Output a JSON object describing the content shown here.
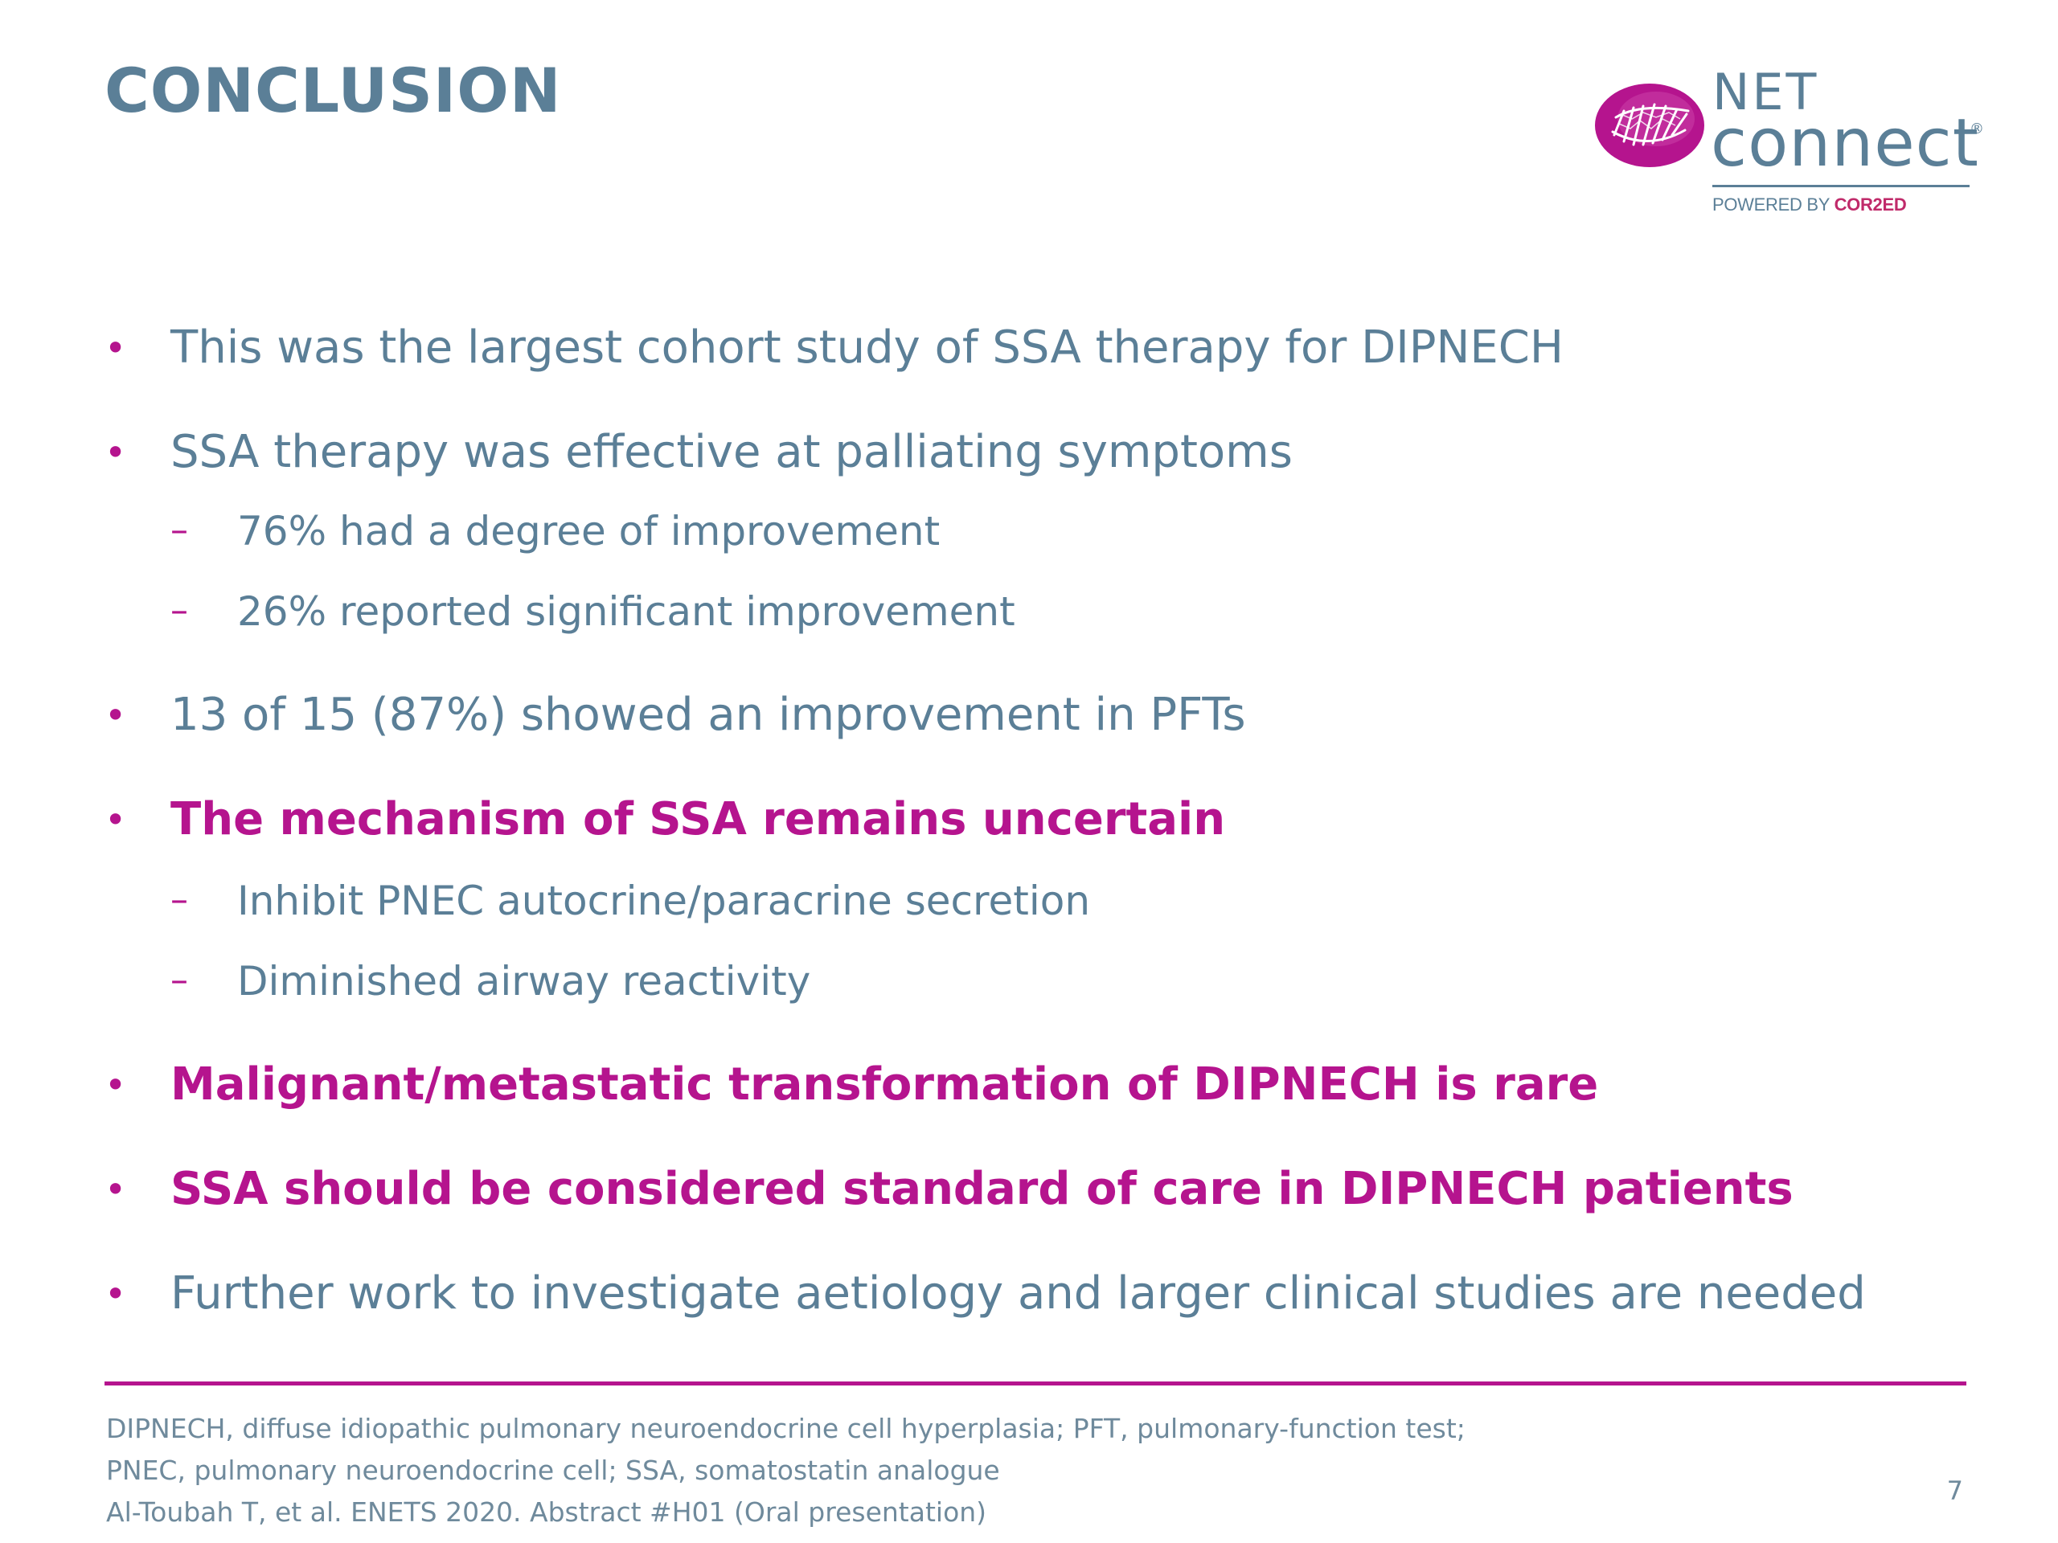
{
  "slide": {
    "title": "CONCLUSION",
    "page_number": "7"
  },
  "logo": {
    "net": "NET",
    "connect": "connect",
    "registered": "®",
    "powered_by": "POWERED BY",
    "brand": "COR2ED",
    "mark_color": "#b5148e",
    "text_color": "#5b7f97"
  },
  "bullets": [
    {
      "level": 1,
      "emphasis": false,
      "text": "This was the largest cohort study of SSA therapy for DIPNECH"
    },
    {
      "level": 1,
      "emphasis": false,
      "text": "SSA therapy was effective at palliating symptoms"
    },
    {
      "level": 2,
      "emphasis": false,
      "text": "76% had a degree of improvement"
    },
    {
      "level": 2,
      "emphasis": false,
      "text": "26% reported significant improvement"
    },
    {
      "level": 1,
      "emphasis": false,
      "text": "13 of 15 (87%) showed an improvement in PFTs"
    },
    {
      "level": 1,
      "emphasis": true,
      "text": "The mechanism of SSA remains uncertain"
    },
    {
      "level": 2,
      "emphasis": false,
      "text": "Inhibit PNEC autocrine/paracrine secretion"
    },
    {
      "level": 2,
      "emphasis": false,
      "text": "Diminished airway reactivity"
    },
    {
      "level": 1,
      "emphasis": true,
      "text": "Malignant/metastatic transformation of DIPNECH is rare"
    },
    {
      "level": 1,
      "emphasis": true,
      "text": "SSA should be considered standard of care in DIPNECH patients"
    },
    {
      "level": 1,
      "emphasis": false,
      "text": "Further work to investigate aetiology and larger clinical studies are needed"
    }
  ],
  "markers": {
    "level1": "•",
    "level2": "–"
  },
  "footnotes": [
    "DIPNECH, diffuse idiopathic pulmonary neuroendocrine cell hyperplasia; PFT, pulmonary-function test;",
    "PNEC, pulmonary neuroendocrine cell; SSA, somatostatin analogue",
    "Al-Toubah T, et al. ENETS 2020. Abstract #H01 (Oral presentation)"
  ],
  "colors": {
    "title": "#5b7f97",
    "body_text": "#5b7f97",
    "accent": "#b5148e",
    "footnote": "#6f8a9c"
  }
}
